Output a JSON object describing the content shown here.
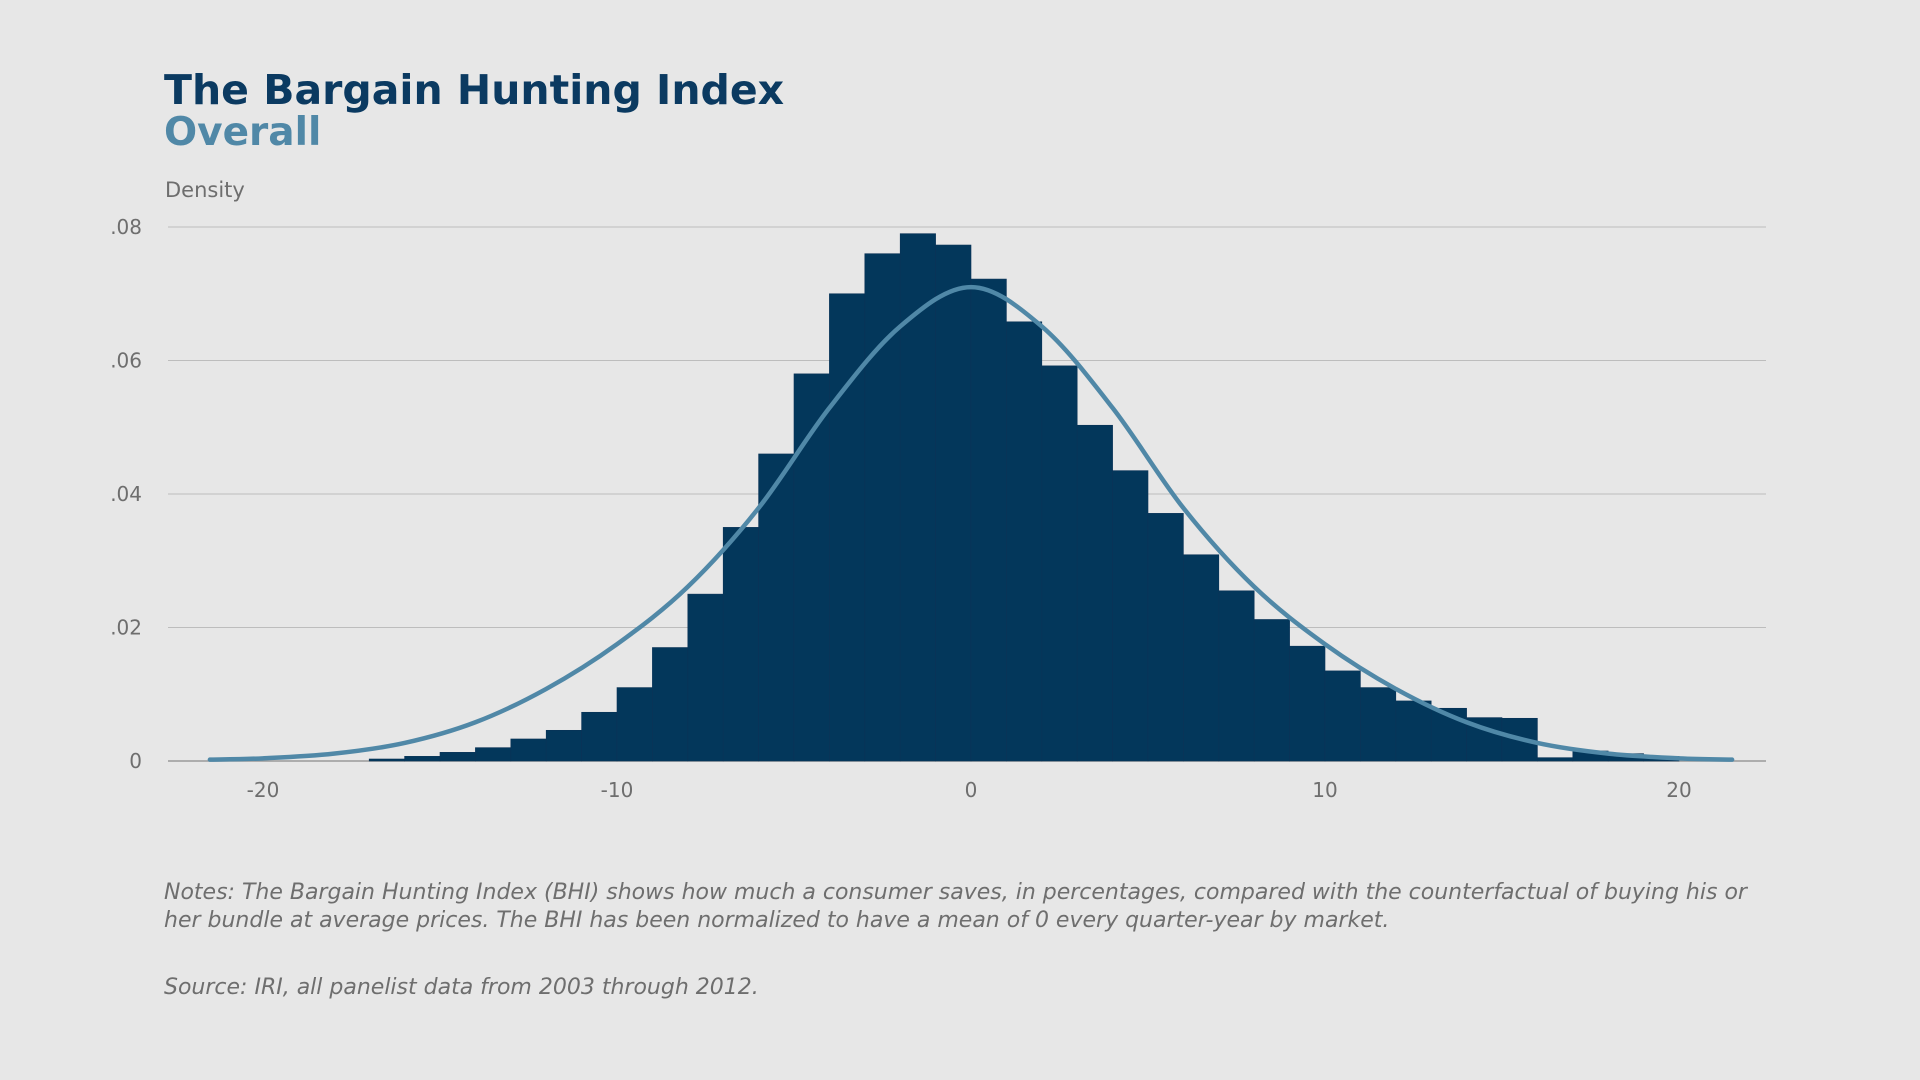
{
  "title": "The Bargain Hunting Index",
  "subtitle": "Overall",
  "notes": "Notes: The Bargain Hunting Index (BHI) shows how much a consumer saves, in percentages, compared with the counterfactual of buying his or her bundle at average prices. The BHI has been normalized to have a mean of 0 every quarter-year by market.",
  "source": "Source: IRI, all panelist data from 2003 through 2012.",
  "colors": {
    "background": "#e7e7e7",
    "title": "#0b3a61",
    "subtitle": "#5088a7",
    "bars": "#03375b",
    "curve": "#5088a7",
    "grid": "#bdbdbd",
    "axis_text": "#6e6e6e"
  },
  "chart_data": {
    "type": "bar",
    "title": "The Bargain Hunting Index",
    "subtitle": "Overall",
    "ylabel": "Density",
    "xlabel": "",
    "xlim": [
      -22.5,
      22.5
    ],
    "ylim": [
      0,
      0.08
    ],
    "xticks": [
      -20,
      -10,
      0,
      10,
      20
    ],
    "xtick_labels": [
      "-20",
      "-10",
      "0",
      "10",
      "20"
    ],
    "yticks": [
      0,
      0.02,
      0.04,
      0.06,
      0.08
    ],
    "ytick_labels": [
      "0",
      ".02",
      ".04",
      ".06",
      ".08"
    ],
    "grid": true,
    "histogram": {
      "bin_width": 1,
      "bin_starts": [
        -17,
        -16,
        -15,
        -14,
        -13,
        -12,
        -11,
        -10,
        -9,
        -8,
        -7,
        -6,
        -5,
        -4,
        -3,
        -2,
        -1,
        0,
        1,
        2,
        3,
        4,
        5,
        6,
        7,
        8,
        9,
        10,
        11,
        12,
        13,
        14,
        15,
        16,
        17,
        18,
        19
      ],
      "values": [
        0.0003,
        0.0007,
        0.0013,
        0.002,
        0.0033,
        0.0046,
        0.0073,
        0.011,
        0.017,
        0.025,
        0.035,
        0.046,
        0.058,
        0.07,
        0.076,
        0.079,
        0.0773,
        0.0722,
        0.0658,
        0.0592,
        0.0503,
        0.0435,
        0.0371,
        0.0309,
        0.0255,
        0.0212,
        0.0172,
        0.0135,
        0.011,
        0.009,
        0.0079,
        0.0065,
        0.0064,
        0.0005,
        0.0015,
        0.0011,
        0.0007
      ]
    },
    "curve": {
      "type": "normal-density",
      "x": [
        -21.5,
        -20,
        -18,
        -16,
        -14,
        -12,
        -10,
        -8,
        -6,
        -4,
        -2,
        0,
        2,
        4,
        6,
        8,
        10,
        12,
        14,
        16,
        18,
        20,
        21.5
      ],
      "y": [
        0.0002,
        0.0004,
        0.0011,
        0.0027,
        0.0058,
        0.0108,
        0.0175,
        0.0261,
        0.0379,
        0.0529,
        0.0651,
        0.071,
        0.0651,
        0.0529,
        0.0379,
        0.0261,
        0.0175,
        0.0108,
        0.0058,
        0.0027,
        0.0011,
        0.0004,
        0.0002
      ]
    }
  }
}
